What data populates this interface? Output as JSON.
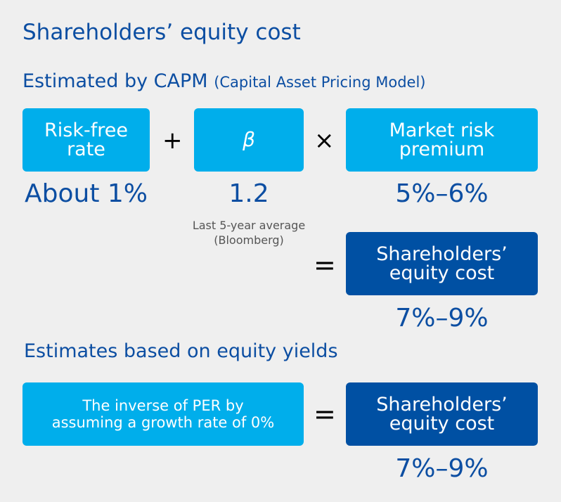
{
  "title": "Shareholders’ equity cost",
  "capm": {
    "heading": "Estimated by CAPM",
    "heading_paren": "(Capital Asset Pricing Model)",
    "boxes": [
      {
        "label": "Risk-free\nrate",
        "value": "About 1%"
      },
      {
        "label": "β",
        "value": "1.2",
        "note": "Last 5-year average\n(Bloomberg)"
      },
      {
        "label": "Market risk\npremium",
        "value": "5%–6%"
      }
    ],
    "ops": {
      "plus": "+",
      "times": "×",
      "equals": "="
    },
    "result": {
      "label": "Shareholders’\nequity cost",
      "value": "7%–9%"
    }
  },
  "yields": {
    "heading": "Estimates based on equity yields",
    "box": {
      "label": "The inverse of PER by\nassuming a growth rate of 0%"
    },
    "equals": "=",
    "result": {
      "label": "Shareholders’\nequity cost",
      "value": "7%–9%"
    }
  },
  "colors": {
    "light_box": "#00aeeb",
    "dark_box": "#0050a3",
    "heading": "#0c4ea2"
  }
}
